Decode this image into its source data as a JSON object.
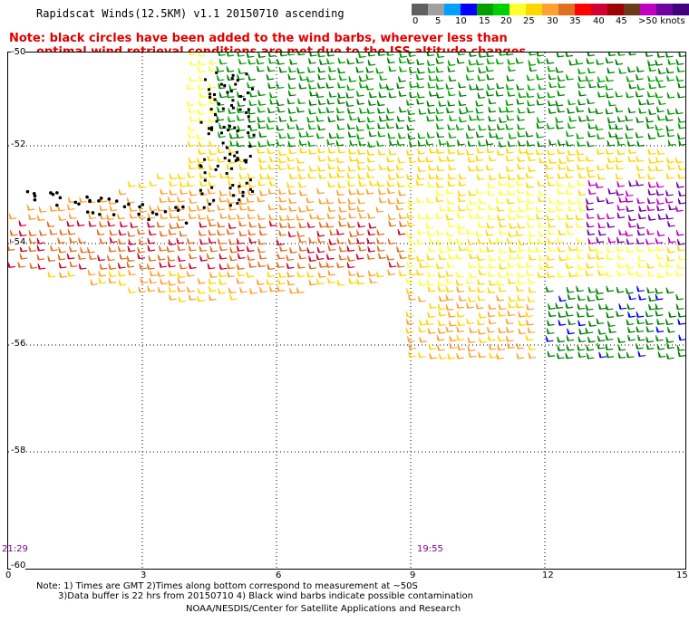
{
  "header": {
    "title": "Rapidscat Winds(12.5KM) v1.1 20150710 ascending",
    "note_line1": "Note: black circles have been added to the wind barbs, wherever less than",
    "note_line2": "optimal wind retrieval conditions are met due to the ISS altitude changes."
  },
  "legend": {
    "labels": [
      "0",
      "5",
      "10",
      "15",
      "20",
      "25",
      "30",
      "35",
      "40",
      "45",
      ">50 knots"
    ],
    "colors": [
      "#606060",
      "#a0a0a0",
      "#00a0ff",
      "#0000ff",
      "#00a000",
      "#00d000",
      "#ffff30",
      "#ffd700",
      "#ffa030",
      "#e07020",
      "#ff0000",
      "#d00030",
      "#a00000",
      "#6b3a1a",
      "#c000c0",
      "#7000a0",
      "#400080"
    ]
  },
  "axes": {
    "y_labels": [
      "-50",
      "-52",
      "-54",
      "-56",
      "-58",
      "-60"
    ],
    "x_labels": [
      "0",
      "3",
      "6",
      "9",
      "12",
      "15"
    ],
    "time_labels": [
      "21:29",
      "19:55"
    ]
  },
  "footer": {
    "line1": "Note: 1) Times are GMT 2)Times along bottom correspond to measurement at ~50S",
    "line2": "3)Data buffer is 22 hrs from 20150710 4) Black wind barbs indicate possible contamination",
    "line3": "NOAA/NESDIS/Center for Satellite Applications and Research"
  }
}
